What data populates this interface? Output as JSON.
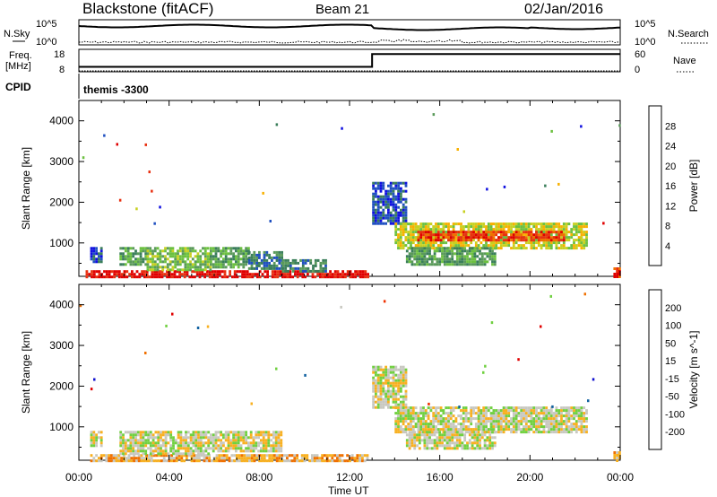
{
  "header": {
    "station": "Blackstone (fitACF)",
    "beam": "Beam 21",
    "date": "02/Jan/2016"
  },
  "top_panels": {
    "noise_label": "N.Sky",
    "noise_search_label": "N.Search",
    "noise_ticks_left": [
      "10^5",
      "10^0"
    ],
    "noise_ticks_right": [
      "10^5",
      "10^0"
    ],
    "freq_label_line1": "Freq.",
    "freq_label_line2": "[MHz]",
    "freq_ticks": [
      "18",
      "8"
    ],
    "nave_label": "Nave",
    "nave_ticks": [
      "60",
      "0"
    ],
    "cpid_label": "CPID",
    "cpid_value": "themis -3300",
    "freq_steps": [
      {
        "t_start": 0.0,
        "t_end": 13.0,
        "value": 10.4
      },
      {
        "t_start": 13.0,
        "t_end": 24.0,
        "value": 16.6
      }
    ]
  },
  "chart_data": [
    {
      "type": "heatmap",
      "parameter": "Power",
      "ylabel": "Slant Range [km]",
      "xlabel": "Time UT",
      "x_ticks": [
        "00:00",
        "04:00",
        "08:00",
        "12:00",
        "16:00",
        "20:00",
        "00:00"
      ],
      "x_range_hours": [
        0,
        24
      ],
      "ylim_km": [
        180,
        4500
      ],
      "y_ticks": [
        1000,
        2000,
        3000,
        4000
      ],
      "colorbar": {
        "label": "Power [dB]",
        "ticks": [
          "4",
          "8",
          "12",
          "16",
          "20",
          "24",
          "28"
        ],
        "colors": [
          "#1010e0",
          "#2050c0",
          "#3a7e5a",
          "#5a9a5a",
          "#6cc040",
          "#c8d020",
          "#f8b000",
          "#f07000",
          "#e83010",
          "#e00000"
        ]
      },
      "regions": [
        {
          "t_start": 0.3,
          "t_end": 12.8,
          "range_km": [
            180,
            330
          ],
          "level": 9
        },
        {
          "t_start": 0.5,
          "t_end": 1.0,
          "range_km": [
            550,
            900
          ],
          "level": 1
        },
        {
          "t_start": 1.8,
          "t_end": 3.0,
          "range_km": [
            500,
            900
          ],
          "level": 3
        },
        {
          "t_start": 3.0,
          "t_end": 5.8,
          "range_km": [
            330,
            900
          ],
          "level": 4
        },
        {
          "t_start": 5.8,
          "t_end": 7.5,
          "range_km": [
            400,
            900
          ],
          "level": 3
        },
        {
          "t_start": 7.5,
          "t_end": 9.0,
          "range_km": [
            350,
            800
          ],
          "level": 2
        },
        {
          "t_start": 9.0,
          "t_end": 11.0,
          "range_km": [
            300,
            600
          ],
          "level": 2
        },
        {
          "t_start": 13.0,
          "t_end": 14.5,
          "range_km": [
            1500,
            2500
          ],
          "level": 1
        },
        {
          "t_start": 14.0,
          "t_end": 22.5,
          "range_km": [
            900,
            1500
          ],
          "level": 5
        },
        {
          "t_start": 15.0,
          "t_end": 21.5,
          "range_km": [
            1050,
            1300
          ],
          "level": 8
        },
        {
          "t_start": 14.5,
          "t_end": 18.5,
          "range_km": [
            500,
            900
          ],
          "level": 3
        },
        {
          "t_start": 23.7,
          "t_end": 24.0,
          "range_km": [
            180,
            400
          ],
          "level": 8
        }
      ]
    },
    {
      "type": "heatmap",
      "parameter": "Velocity",
      "ylabel": "Slant Range [km]",
      "xlabel": "Time UT",
      "x_ticks": [
        "00:00",
        "04:00",
        "08:00",
        "12:00",
        "16:00",
        "20:00",
        "00:00"
      ],
      "x_range_hours": [
        0,
        24
      ],
      "ylim_km": [
        180,
        4500
      ],
      "y_ticks": [
        1000,
        2000,
        3000,
        4000
      ],
      "colorbar": {
        "label": "Velocity [m s^-1]",
        "ticks": [
          "200",
          "100",
          "50",
          "15",
          "-15",
          "-50",
          "-100",
          "-200"
        ],
        "colors": [
          "#1010d0",
          "#1060a0",
          "#30a040",
          "#70d040",
          "#c8c8c0",
          "#f8b020",
          "#f07000",
          "#f03000",
          "#e00000"
        ]
      },
      "regions": [
        {
          "t_start": 0.5,
          "t_end": 12.8,
          "range_km": [
            180,
            330
          ],
          "level": 5
        },
        {
          "t_start": 0.5,
          "t_end": 1.0,
          "range_km": [
            550,
            900
          ],
          "level": 4
        },
        {
          "t_start": 1.8,
          "t_end": 5.8,
          "range_km": [
            350,
            900
          ],
          "level": 4
        },
        {
          "t_start": 5.8,
          "t_end": 9.0,
          "range_km": [
            400,
            900
          ],
          "level": 4
        },
        {
          "t_start": 13.0,
          "t_end": 14.5,
          "range_km": [
            1500,
            2500
          ],
          "level": 4
        },
        {
          "t_start": 14.0,
          "t_end": 22.5,
          "range_km": [
            900,
            1500
          ],
          "level": 4
        },
        {
          "t_start": 14.5,
          "t_end": 18.5,
          "range_km": [
            500,
            900
          ],
          "level": 4
        },
        {
          "t_start": 23.7,
          "t_end": 24.0,
          "range_km": [
            180,
            400
          ],
          "level": 5
        }
      ]
    }
  ]
}
